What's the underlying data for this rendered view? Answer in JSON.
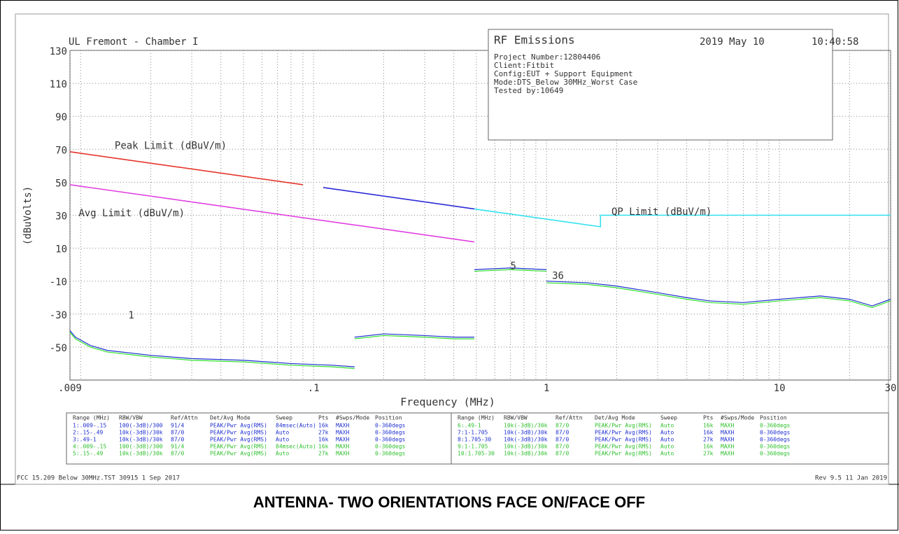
{
  "chart_data": {
    "type": "line",
    "header_left": "UL Fremont - Chamber I",
    "header_date": "2019 May 10",
    "header_time": "10:40:58",
    "info_title": "RF Emissions",
    "info_lines": [
      "Project Number:12804406",
      "Client:Fitbit",
      "Config:EUT + Support Equipment",
      "Mode:DTS_Below 30MHz_Worst Case",
      "Tested by:10649"
    ],
    "x_label": "Frequency (MHz)",
    "y_label": "(dBuVolts)",
    "log_x": true,
    "grid": true,
    "xlim": [
      0.009,
      30
    ],
    "xticks": [
      {
        "value": 0.009,
        "label": ".009"
      },
      {
        "value": 0.1,
        "label": ".1"
      },
      1,
      10,
      30
    ],
    "xgrid_minor": [
      0.01,
      0.02,
      0.03,
      0.04,
      0.05,
      0.06,
      0.07,
      0.08,
      0.09,
      0.2,
      0.3,
      0.4,
      0.5,
      0.6,
      0.7,
      0.8,
      0.9,
      2,
      3,
      4,
      5,
      6,
      7,
      8,
      9,
      20
    ],
    "ylim": [
      -70,
      130
    ],
    "yticks": [
      130,
      110,
      90,
      70,
      50,
      30,
      10,
      -10,
      -30,
      -50
    ],
    "series": [
      {
        "name": "Peak Limit (dBuV/m)",
        "colors": [
          "#e8342a",
          "#2b2bd6"
        ],
        "label_color": "#6a6af0",
        "x": [
          0.009,
          0.09,
          0.1,
          0.11,
          0.49
        ],
        "values": [
          68.5,
          48.5,
          null,
          46.8,
          33.8
        ]
      },
      {
        "name": "Avg Limit (dBuV/m)",
        "colors": [
          "#e040e0"
        ],
        "label_color": "#e040e0",
        "x": [
          0.009,
          0.49
        ],
        "values": [
          48.5,
          13.8
        ]
      },
      {
        "name": "QP Limit (dBuV/m)",
        "colors": [
          "#30e0f0"
        ],
        "label_color": "#30e0f0",
        "x": [
          0.49,
          1.705,
          1.705,
          30
        ],
        "values": [
          33.8,
          23,
          30,
          30
        ]
      }
    ],
    "traces": [
      {
        "color": "#2030d0",
        "x": [
          0.009,
          0.0095,
          0.011,
          0.013,
          0.02,
          0.03,
          0.05,
          0.08,
          0.12,
          0.15,
          0.152,
          0.15,
          0.2,
          0.3,
          0.4,
          0.49,
          0.495,
          0.49,
          0.7,
          1,
          1.01,
          1,
          1.5,
          2,
          3,
          4,
          5,
          7,
          10,
          15,
          20,
          25,
          30
        ],
        "values": [
          -40,
          -44,
          -49,
          -52,
          -55,
          -57,
          -58,
          -60,
          -61,
          -62,
          null,
          -44,
          -42,
          -43,
          -44,
          -44,
          null,
          -3,
          -2,
          -3,
          null,
          -10,
          -11,
          -13,
          -17,
          -20,
          -22,
          -23,
          -21,
          -19,
          -21,
          -25,
          -21
        ]
      },
      {
        "color": "#30e030",
        "x": [
          0.009,
          0.0095,
          0.011,
          0.013,
          0.02,
          0.03,
          0.05,
          0.08,
          0.12,
          0.15,
          0.152,
          0.15,
          0.2,
          0.3,
          0.4,
          0.49,
          0.495,
          0.49,
          0.7,
          1,
          1.01,
          1,
          1.5,
          2,
          3,
          4,
          5,
          7,
          10,
          15,
          20,
          25,
          30
        ],
        "values": [
          -41,
          -45,
          -50,
          -53,
          -56,
          -58,
          -59,
          -61,
          -62,
          -63,
          null,
          -45,
          -43,
          -44,
          -45,
          -45,
          null,
          -4,
          -3,
          -4,
          null,
          -11,
          -12,
          -14,
          -18,
          -21,
          -23,
          -24,
          -22,
          -20,
          -22,
          -26,
          -22
        ]
      }
    ],
    "markers": [
      {
        "text": "1",
        "x": 0.0165,
        "y": -31
      },
      {
        "text": "5",
        "x": 0.72,
        "y": -1
      },
      {
        "text": "36",
        "x": 1.12,
        "y": -7
      }
    ],
    "footer_left": "FCC 15.209 Below 30MHz.TST 30915  1 Sep 2017",
    "footer_right": "Rev 9.5 11 Jan 2019",
    "caption": "ANTENNA- TWO ORIENTATIONS FACE ON/FACE OFF"
  },
  "table": {
    "header": [
      "Range (MHz)",
      "RBW/VBW",
      "Ref/Attn",
      "Det/Avg Mode",
      "Sweep",
      "Pts",
      "#Swps/Mode",
      "Position"
    ],
    "left": [
      {
        "color": "#2030d0",
        "cells": [
          "1:.009-.15",
          "100(-3dB)/300",
          "91/4",
          "PEAK/Pwr Avg(RMS)",
          "84msec(Auto)",
          "16k",
          "MAXH",
          "0-360degs"
        ]
      },
      {
        "color": "#2030d0",
        "cells": [
          "2:.15-.49",
          "10k(-3dB)/30k",
          "87/0",
          "PEAK/Pwr Avg(RMS)",
          "Auto",
          "27k",
          "MAXH",
          "0-360degs"
        ]
      },
      {
        "color": "#2030d0",
        "cells": [
          "3:.49-1",
          "10k(-3dB)/30k",
          "87/0",
          "PEAK/Pwr Avg(RMS)",
          "Auto",
          "16k",
          "MAXH",
          "0-360degs"
        ]
      },
      {
        "color": "#30c030",
        "cells": [
          "4:.009-.15",
          "100(-3dB)/300",
          "91/4",
          "PEAK/Pwr Avg(RMS)",
          "84msec(Auto)",
          "16k",
          "MAXH",
          "0-360degs"
        ]
      },
      {
        "color": "#30c030",
        "cells": [
          "5:.15-.49",
          "10k(-3dB)/30k",
          "87/0",
          "PEAK/Pwr Avg(RMS)",
          "Auto",
          "27k",
          "MAXH",
          "0-360degs"
        ]
      }
    ],
    "right": [
      {
        "color": "#30c030",
        "cells": [
          "6:.49-1",
          "10k(-3dB)/30k",
          "87/0",
          "PEAK/Pwr Avg(RMS)",
          "Auto",
          "16k",
          "MAXH",
          "0-360degs"
        ]
      },
      {
        "color": "#2030d0",
        "cells": [
          "7:1-1.705",
          "10k(-3dB)/30k",
          "87/0",
          "PEAK/Pwr Avg(RMS)",
          "Auto",
          "16k",
          "MAXH",
          "0-360degs"
        ]
      },
      {
        "color": "#2030d0",
        "cells": [
          "8:1.705-30",
          "10k(-3dB)/30k",
          "87/0",
          "PEAK/Pwr Avg(RMS)",
          "Auto",
          "27k",
          "MAXH",
          "0-360degs"
        ]
      },
      {
        "color": "#30c030",
        "cells": [
          "9:1-1.705",
          "10k(-3dB)/30k",
          "87/0",
          "PEAK/Pwr Avg(RMS)",
          "Auto",
          "16k",
          "MAXH",
          "0-360degs"
        ]
      },
      {
        "color": "#30c030",
        "cells": [
          "10:1.705-30",
          "10k(-3dB)/30k",
          "87/0",
          "PEAK/Pwr Avg(RMS)",
          "Auto",
          "27k",
          "MAXH",
          "0-360degs"
        ]
      }
    ]
  }
}
